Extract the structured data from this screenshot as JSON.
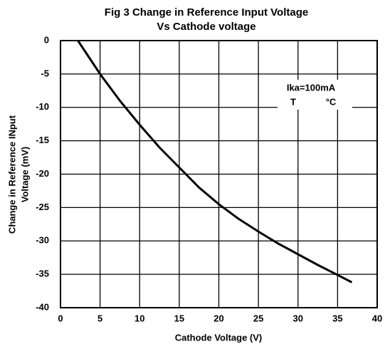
{
  "chart_data": {
    "type": "line",
    "title": [
      "Fig 3 Change in Reference Input Voltage",
      "Vs Cathode voltage"
    ],
    "x_label": "Cathode Voltage (V)",
    "y_label": [
      "Change in Reference INput",
      "Voltage  (mV)"
    ],
    "annotations": [
      "Ika=100mA",
      "T",
      "°C"
    ],
    "x": [
      2.2,
      5,
      7.5,
      10,
      12.5,
      15,
      17.5,
      20,
      22.5,
      25,
      27.5,
      30,
      32.5,
      35,
      36.8
    ],
    "values": [
      0,
      -5,
      -9,
      -12.6,
      -16,
      -19,
      -22,
      -24.5,
      -26.7,
      -28.6,
      -30.4,
      -32,
      -33.6,
      -35.1,
      -36.2
    ],
    "color": "#000000",
    "xlim": [
      0,
      40
    ],
    "xticks": [
      0,
      5,
      10,
      15,
      20,
      25,
      30,
      35,
      40
    ],
    "ylim": [
      -40,
      0
    ],
    "yticks": [
      0,
      -5,
      -10,
      -15,
      -20,
      -25,
      -30,
      -35,
      -40
    ],
    "grid": true
  }
}
